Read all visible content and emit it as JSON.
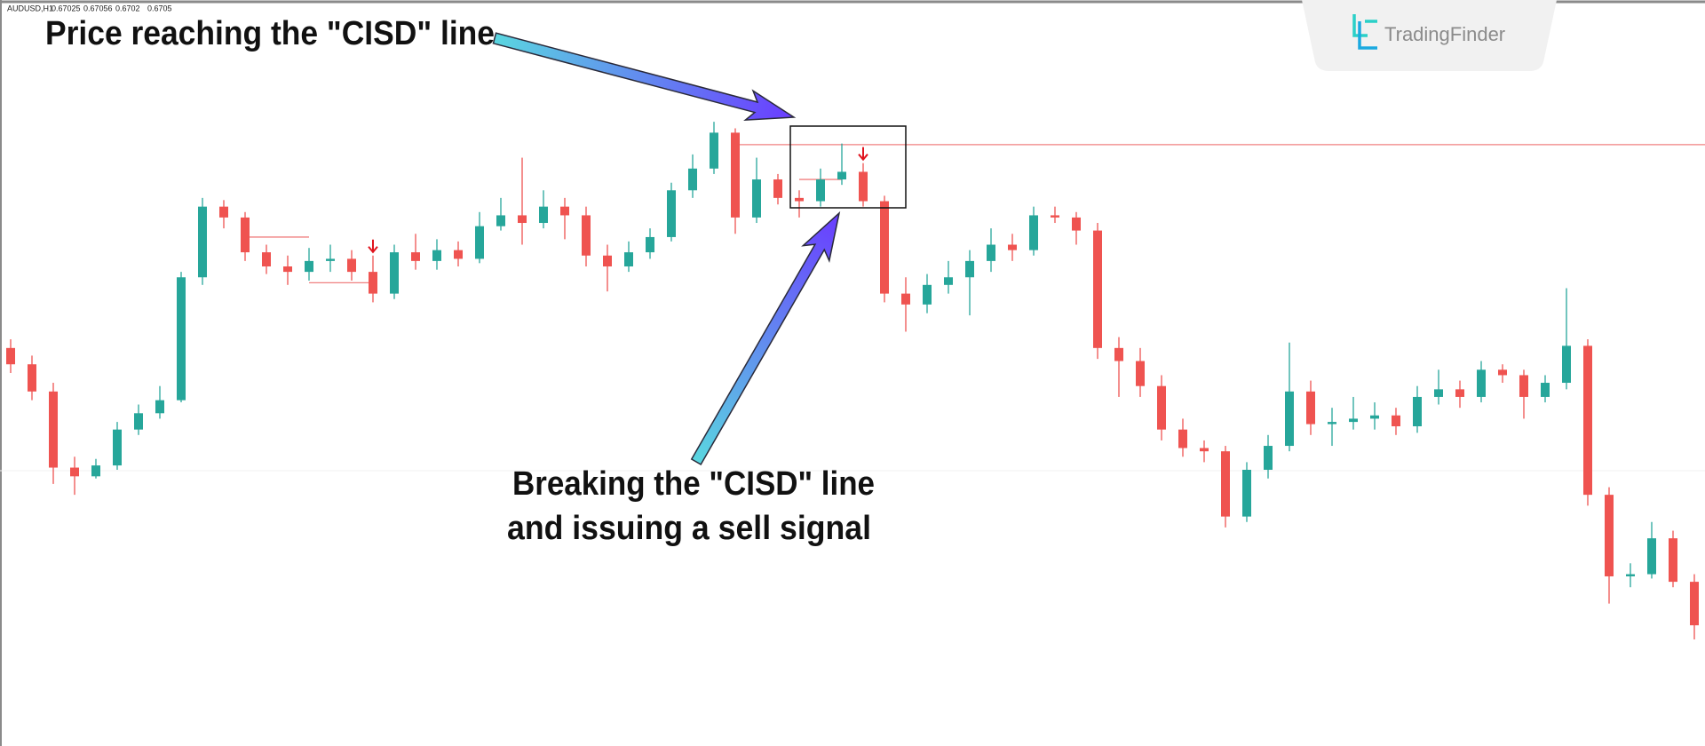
{
  "chart_data": {
    "type": "candlestick",
    "symbol": "AUDUSD,H1",
    "header_values": [
      0.67025,
      0.67056,
      0.6702,
      0.6705
    ],
    "annotations": [
      "Price reaching the \"CISD\" line",
      "Breaking the \"CISD\" line",
      "and issuing a sell signal"
    ],
    "brand": "TradingFinder",
    "ylim": [
      0.66828,
      0.682
    ],
    "up_color": "#26a69a",
    "down_color": "#ef5350",
    "level_color": "#f08080",
    "signal_color": "#e0141e",
    "open": [
      0.6756,
      0.6753,
      0.6748,
      0.6734,
      0.67324,
      0.67344,
      0.6741,
      0.6744,
      0.67464,
      0.6769,
      0.6782,
      0.678,
      0.67736,
      0.6771,
      0.677,
      0.6772,
      0.67724,
      0.677,
      0.6766,
      0.67736,
      0.6772,
      0.6774,
      0.67724,
      0.67784,
      0.67804,
      0.6779,
      0.6782,
      0.67804,
      0.6773,
      0.6771,
      0.67736,
      0.67764,
      0.6785,
      0.6789,
      0.67956,
      0.678,
      0.6787,
      0.67836,
      0.6783,
      0.6787,
      0.67884,
      0.6783,
      0.6766,
      0.6764,
      0.67676,
      0.6769,
      0.6772,
      0.6775,
      0.6774,
      0.67804,
      0.678,
      0.67776,
      0.6756,
      0.67536,
      0.6749,
      0.6741,
      0.67376,
      0.6737,
      0.6725,
      0.67336,
      0.6738,
      0.6748,
      0.6742,
      0.67424,
      0.6743,
      0.67436,
      0.67416,
      0.6747,
      0.67484,
      0.6747,
      0.6752,
      0.6751,
      0.6747,
      0.67496,
      0.67564,
      0.6729,
      0.6714,
      0.67144,
      0.6721,
      0.6713
    ],
    "high": [
      0.67576,
      0.67546,
      0.67496,
      0.6736,
      0.67356,
      0.67424,
      0.67456,
      0.6749,
      0.677,
      0.67836,
      0.67832,
      0.6781,
      0.6775,
      0.6773,
      0.67744,
      0.6775,
      0.6774,
      0.6773,
      0.6775,
      0.6777,
      0.6776,
      0.67756,
      0.6781,
      0.67836,
      0.6791,
      0.6785,
      0.67836,
      0.6782,
      0.6775,
      0.67756,
      0.6778,
      0.67864,
      0.67916,
      0.67976,
      0.67964,
      0.6791,
      0.6788,
      0.6785,
      0.6789,
      0.67936,
      0.679,
      0.6784,
      0.6769,
      0.67696,
      0.6772,
      0.6774,
      0.6778,
      0.6777,
      0.6782,
      0.6782,
      0.6781,
      0.6779,
      0.6758,
      0.6756,
      0.6751,
      0.6743,
      0.6739,
      0.6738,
      0.6735,
      0.674,
      0.6757,
      0.675,
      0.6745,
      0.6747,
      0.6746,
      0.6745,
      0.6749,
      0.6752,
      0.675,
      0.67536,
      0.6753,
      0.6752,
      0.6751,
      0.6767,
      0.67576,
      0.67304,
      0.67164,
      0.6724,
      0.67224,
      0.67144
    ],
    "low": [
      0.67514,
      0.67464,
      0.6731,
      0.6729,
      0.6732,
      0.67336,
      0.674,
      0.6743,
      0.6746,
      0.67676,
      0.6778,
      0.6772,
      0.67696,
      0.67676,
      0.67684,
      0.677,
      0.67684,
      0.67644,
      0.6765,
      0.67704,
      0.67704,
      0.6771,
      0.67716,
      0.67776,
      0.6775,
      0.6778,
      0.6776,
      0.6771,
      0.67664,
      0.677,
      0.67724,
      0.67756,
      0.67836,
      0.6788,
      0.6777,
      0.6779,
      0.67824,
      0.678,
      0.6782,
      0.6786,
      0.6782,
      0.67644,
      0.6759,
      0.67624,
      0.6766,
      0.6762,
      0.677,
      0.6772,
      0.6773,
      0.6779,
      0.6775,
      0.6754,
      0.6747,
      0.6747,
      0.6739,
      0.6736,
      0.6735,
      0.6723,
      0.6724,
      0.6732,
      0.6737,
      0.674,
      0.6738,
      0.6741,
      0.6741,
      0.674,
      0.67404,
      0.67456,
      0.6745,
      0.6746,
      0.67496,
      0.6743,
      0.6746,
      0.67484,
      0.6727,
      0.6709,
      0.6712,
      0.67136,
      0.6712,
      0.67024
    ],
    "close": [
      0.6753,
      0.6748,
      0.6734,
      0.67324,
      0.67344,
      0.6741,
      0.6744,
      0.67464,
      0.6769,
      0.6782,
      0.678,
      0.67736,
      0.6771,
      0.677,
      0.6772,
      0.67724,
      0.677,
      0.6766,
      0.67736,
      0.6772,
      0.6774,
      0.67724,
      0.67784,
      0.67804,
      0.6779,
      0.6782,
      0.67804,
      0.6773,
      0.6771,
      0.67736,
      0.67764,
      0.6785,
      0.6789,
      0.67956,
      0.678,
      0.6787,
      0.67836,
      0.6783,
      0.6787,
      0.67884,
      0.6783,
      0.6766,
      0.6764,
      0.67676,
      0.6769,
      0.6772,
      0.6775,
      0.6774,
      0.67804,
      0.678,
      0.67776,
      0.6756,
      0.67536,
      0.6749,
      0.6741,
      0.67376,
      0.6737,
      0.6725,
      0.67336,
      0.6738,
      0.6748,
      0.6742,
      0.67424,
      0.6743,
      0.67436,
      0.67416,
      0.6747,
      0.67484,
      0.6747,
      0.6752,
      0.6751,
      0.6747,
      0.67496,
      0.67564,
      0.6729,
      0.6714,
      0.67144,
      0.6721,
      0.6713,
      0.6705
    ],
    "cisd_lines": [
      {
        "level": 0.67934,
        "from": 34,
        "to": 79
      },
      {
        "level": 0.67764,
        "from": 11,
        "to": 14
      },
      {
        "level": 0.6768,
        "from": 14,
        "to": 17
      },
      {
        "level": 0.6787,
        "from": 37,
        "to": 39
      }
    ],
    "sell_signals": [
      17,
      40
    ]
  }
}
